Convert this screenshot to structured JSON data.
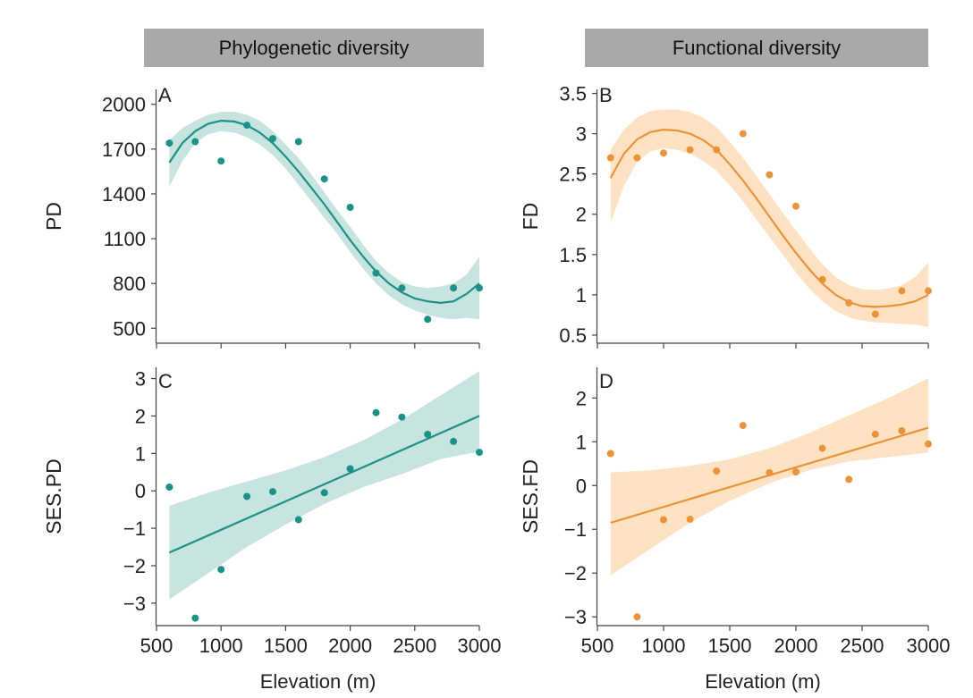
{
  "headers": [
    "Phylogenetic diversity",
    "Functional diversity"
  ],
  "colors": {
    "teal": "#1b9287",
    "teal_band": "#c7e4e0",
    "orange": "#ec9338",
    "orange_band": "#fde2c4",
    "header_bg": "#a9a9a9",
    "axis": "#444444"
  },
  "chart_data": [
    {
      "panel": "A",
      "type": "scatter",
      "ylabel": "PD",
      "xlabel": "",
      "color": "teal",
      "xlim": [
        500,
        3000
      ],
      "ylim": [
        400,
        2100
      ],
      "yticks": [
        500,
        800,
        1100,
        1400,
        1700,
        2000
      ],
      "xticks": [
        500,
        1000,
        1500,
        2000,
        2500,
        3000
      ],
      "show_xtick_labels": false,
      "points": [
        [
          600,
          1740
        ],
        [
          800,
          1750
        ],
        [
          1000,
          1620
        ],
        [
          1200,
          1860
        ],
        [
          1400,
          1770
        ],
        [
          1600,
          1750
        ],
        [
          1800,
          1500
        ],
        [
          2000,
          1310
        ],
        [
          2200,
          870
        ],
        [
          2400,
          770
        ],
        [
          2600,
          560
        ],
        [
          2800,
          770
        ],
        [
          3000,
          770
        ]
      ],
      "fit": {
        "x": [
          600,
          700,
          800,
          900,
          1000,
          1100,
          1200,
          1300,
          1400,
          1500,
          1600,
          1700,
          1800,
          1900,
          2000,
          2100,
          2200,
          2300,
          2400,
          2500,
          2600,
          2700,
          2800,
          2900,
          3000
        ],
        "y": [
          1610,
          1740,
          1820,
          1870,
          1890,
          1885,
          1860,
          1810,
          1740,
          1650,
          1550,
          1440,
          1330,
          1210,
          1090,
          980,
          880,
          800,
          740,
          700,
          680,
          670,
          680,
          730,
          800
        ]
      },
      "band": {
        "upper": [
          1760,
          1840,
          1890,
          1930,
          1950,
          1950,
          1930,
          1890,
          1820,
          1730,
          1640,
          1530,
          1410,
          1290,
          1180,
          1060,
          950,
          870,
          810,
          780,
          770,
          780,
          800,
          860,
          980
        ],
        "lower": [
          1450,
          1620,
          1740,
          1800,
          1820,
          1810,
          1780,
          1730,
          1660,
          1570,
          1460,
          1350,
          1240,
          1130,
          1010,
          900,
          800,
          720,
          660,
          620,
          590,
          570,
          560,
          570,
          560
        ]
      }
    },
    {
      "panel": "B",
      "type": "scatter",
      "ylabel": "FD",
      "xlabel": "",
      "color": "orange",
      "xlim": [
        500,
        3000
      ],
      "ylim": [
        0.4,
        3.55
      ],
      "yticks": [
        0.5,
        1.0,
        1.5,
        2.0,
        2.5,
        3.0,
        3.5
      ],
      "xticks": [
        500,
        1000,
        1500,
        2000,
        2500,
        3000
      ],
      "show_xtick_labels": false,
      "points": [
        [
          600,
          2.7
        ],
        [
          800,
          2.7
        ],
        [
          1000,
          2.76
        ],
        [
          1200,
          2.8
        ],
        [
          1400,
          2.8
        ],
        [
          1600,
          3.0
        ],
        [
          1800,
          2.49
        ],
        [
          2000,
          2.1
        ],
        [
          2200,
          1.19
        ],
        [
          2400,
          0.9
        ],
        [
          2600,
          0.76
        ],
        [
          2800,
          1.05
        ],
        [
          3000,
          1.05
        ]
      ],
      "fit": {
        "x": [
          600,
          700,
          800,
          900,
          1000,
          1100,
          1200,
          1300,
          1400,
          1500,
          1600,
          1700,
          1800,
          1900,
          2000,
          2100,
          2200,
          2300,
          2400,
          2500,
          2600,
          2700,
          2800,
          2900,
          3000
        ],
        "y": [
          2.45,
          2.75,
          2.93,
          3.02,
          3.05,
          3.04,
          3.0,
          2.92,
          2.8,
          2.62,
          2.42,
          2.2,
          1.97,
          1.74,
          1.52,
          1.32,
          1.14,
          1.0,
          0.91,
          0.86,
          0.85,
          0.86,
          0.88,
          0.92,
          1.0
        ]
      },
      "band": {
        "upper": [
          2.8,
          3.05,
          3.2,
          3.28,
          3.3,
          3.3,
          3.27,
          3.2,
          3.08,
          2.9,
          2.7,
          2.48,
          2.25,
          2.02,
          1.8,
          1.58,
          1.38,
          1.22,
          1.12,
          1.07,
          1.06,
          1.08,
          1.12,
          1.22,
          1.4
        ],
        "lower": [
          1.9,
          2.35,
          2.65,
          2.78,
          2.82,
          2.8,
          2.75,
          2.66,
          2.54,
          2.36,
          2.16,
          1.94,
          1.72,
          1.5,
          1.28,
          1.08,
          0.92,
          0.8,
          0.72,
          0.68,
          0.66,
          0.65,
          0.64,
          0.63,
          0.6
        ]
      }
    },
    {
      "panel": "C",
      "type": "scatter",
      "ylabel": "SES.PD",
      "xlabel": "Elevation (m)",
      "color": "teal",
      "xlim": [
        500,
        3000
      ],
      "ylim": [
        -3.6,
        3.3
      ],
      "yticks": [
        -3,
        -2,
        -1,
        0,
        1,
        2,
        3
      ],
      "ytick_labels": [
        "−3",
        "−2",
        "−1",
        "0",
        "1",
        "2",
        "3"
      ],
      "xticks": [
        500,
        1000,
        1500,
        2000,
        2500,
        3000
      ],
      "show_xtick_labels": true,
      "points": [
        [
          600,
          0.1
        ],
        [
          800,
          -3.4
        ],
        [
          1000,
          -2.1
        ],
        [
          1200,
          -0.15
        ],
        [
          1400,
          -0.02
        ],
        [
          1600,
          -0.77
        ],
        [
          1800,
          -0.05
        ],
        [
          2000,
          0.59
        ],
        [
          2200,
          2.09
        ],
        [
          2400,
          1.97
        ],
        [
          2600,
          1.51
        ],
        [
          2800,
          1.32
        ],
        [
          3000,
          1.03
        ]
      ],
      "fit": {
        "x": [
          600,
          3000
        ],
        "y": [
          -1.65,
          2.0
        ]
      },
      "band": {
        "x": [
          600,
          900,
          1200,
          1500,
          1800,
          2100,
          2400,
          2700,
          3000
        ],
        "upper": [
          -0.4,
          -0.05,
          0.25,
          0.55,
          0.9,
          1.35,
          1.9,
          2.55,
          3.2
        ],
        "lower": [
          -2.9,
          -2.2,
          -1.5,
          -0.9,
          -0.35,
          0.1,
          0.45,
          0.85,
          1.05
        ]
      }
    },
    {
      "panel": "D",
      "type": "scatter",
      "ylabel": "SES.FD",
      "xlabel": "Elevation (m)",
      "color": "orange",
      "xlim": [
        500,
        3000
      ],
      "ylim": [
        -3.2,
        2.7
      ],
      "yticks": [
        -3,
        -2,
        -1,
        0,
        1,
        2
      ],
      "ytick_labels": [
        "−3",
        "−2",
        "−1",
        "0",
        "1",
        "2"
      ],
      "xticks": [
        500,
        1000,
        1500,
        2000,
        2500,
        3000
      ],
      "show_xtick_labels": true,
      "points": [
        [
          600,
          0.73
        ],
        [
          800,
          -3.0
        ],
        [
          1000,
          -0.78
        ],
        [
          1200,
          -0.77
        ],
        [
          1400,
          0.33
        ],
        [
          1600,
          1.37
        ],
        [
          1800,
          0.29
        ],
        [
          2000,
          0.31
        ],
        [
          2200,
          0.85
        ],
        [
          2400,
          0.14
        ],
        [
          2600,
          1.17
        ],
        [
          2800,
          1.25
        ],
        [
          3000,
          0.95
        ]
      ],
      "fit": {
        "x": [
          600,
          3000
        ],
        "y": [
          -0.85,
          1.32
        ]
      },
      "band": {
        "x": [
          600,
          900,
          1200,
          1500,
          1800,
          2100,
          2400,
          2700,
          3000
        ],
        "upper": [
          0.3,
          0.35,
          0.45,
          0.6,
          0.85,
          1.2,
          1.6,
          2.0,
          2.45
        ],
        "lower": [
          -2.05,
          -1.45,
          -0.85,
          -0.35,
          0.05,
          0.35,
          0.55,
          0.65,
          0.75
        ]
      }
    }
  ]
}
